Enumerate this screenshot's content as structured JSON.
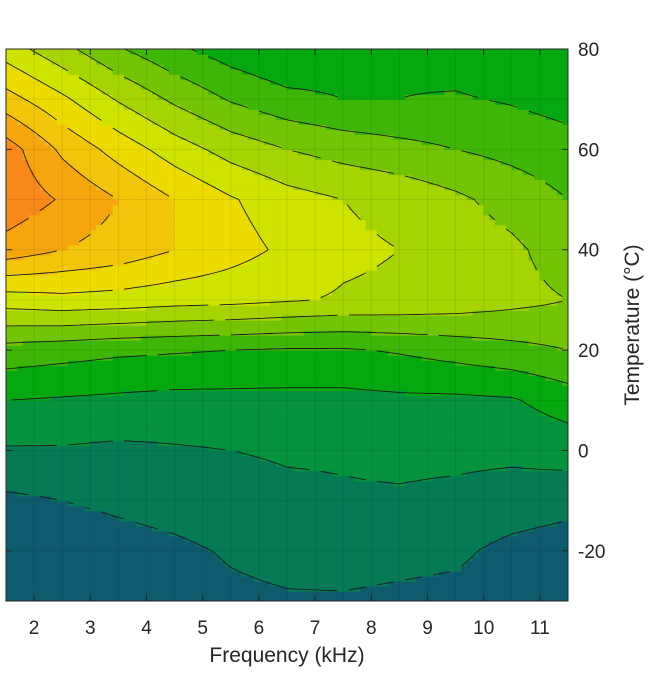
{
  "chart_data": {
    "type": "heatmap",
    "subtype": "filled-contour",
    "title": "",
    "xlabel": "Frequency (kHz)",
    "ylabel": "Temperature (°C)",
    "y_axis_side": "right",
    "xlim": [
      1.5,
      11.5
    ],
    "ylim": [
      -30,
      80
    ],
    "x_ticks": [
      2,
      3,
      4,
      5,
      6,
      7,
      8,
      9,
      10,
      11
    ],
    "y_ticks": [
      -20,
      0,
      20,
      40,
      60,
      80
    ],
    "grid": true,
    "colormap": [
      "#0f5b6e",
      "#067a55",
      "#04923d",
      "#06a810",
      "#3eb607",
      "#72c404",
      "#a6d402",
      "#cee300",
      "#eddb00",
      "#f2c40a",
      "#f5a60f",
      "#f8881a",
      "#fb6e0a"
    ],
    "frequency": [
      1.5,
      2.5,
      3.5,
      4.5,
      5.5,
      6.5,
      7.5,
      8.5,
      9.5,
      10.5,
      11.5
    ],
    "temperature": [
      -30,
      -20,
      -10,
      0,
      10,
      20,
      30,
      40,
      50,
      60,
      70,
      80
    ],
    "z": [
      [
        0.2,
        0.2,
        0.3,
        0.5,
        0.8,
        0.9,
        0.9,
        0.8,
        0.7,
        0.4,
        0.3
      ],
      [
        0.3,
        0.4,
        0.6,
        0.8,
        1.1,
        1.3,
        1.4,
        1.3,
        1.2,
        0.7,
        0.4
      ],
      [
        0.8,
        1.0,
        1.2,
        1.4,
        1.6,
        1.8,
        1.9,
        1.9,
        1.8,
        1.6,
        1.4
      ],
      [
        1.9,
        1.9,
        1.8,
        1.9,
        2.0,
        2.1,
        2.1,
        2.2,
        2.2,
        2.2,
        2.4
      ],
      [
        3.0,
        2.9,
        2.8,
        2.7,
        2.7,
        2.7,
        2.7,
        2.8,
        2.8,
        2.9,
        3.5
      ],
      [
        4.6,
        4.4,
        4.2,
        4.1,
        4.0,
        3.9,
        3.9,
        4.1,
        4.4,
        4.7,
        5.0
      ],
      [
        7.5,
        7.7,
        7.6,
        7.4,
        7.3,
        7.1,
        6.9,
        6.8,
        6.6,
        6.3,
        6.0
      ],
      [
        10.6,
        10.0,
        9.6,
        9.0,
        8.4,
        7.8,
        7.2,
        7.0,
        6.6,
        6.2,
        5.5
      ],
      [
        11.7,
        10.9,
        10.0,
        9.0,
        8.1,
        7.4,
        7.0,
        6.7,
        6.2,
        5.6,
        5.0
      ],
      [
        11.5,
        9.8,
        8.6,
        7.5,
        6.6,
        6.0,
        5.6,
        5.3,
        5.0,
        4.7,
        4.4
      ],
      [
        9.4,
        8.2,
        6.9,
        5.8,
        4.9,
        4.3,
        4.0,
        4.0,
        4.1,
        3.9,
        3.6
      ],
      [
        7.5,
        6.3,
        5.1,
        4.2,
        3.5,
        3.0,
        3.4,
        3.8,
        3.5,
        3.2,
        3.0
      ]
    ]
  }
}
